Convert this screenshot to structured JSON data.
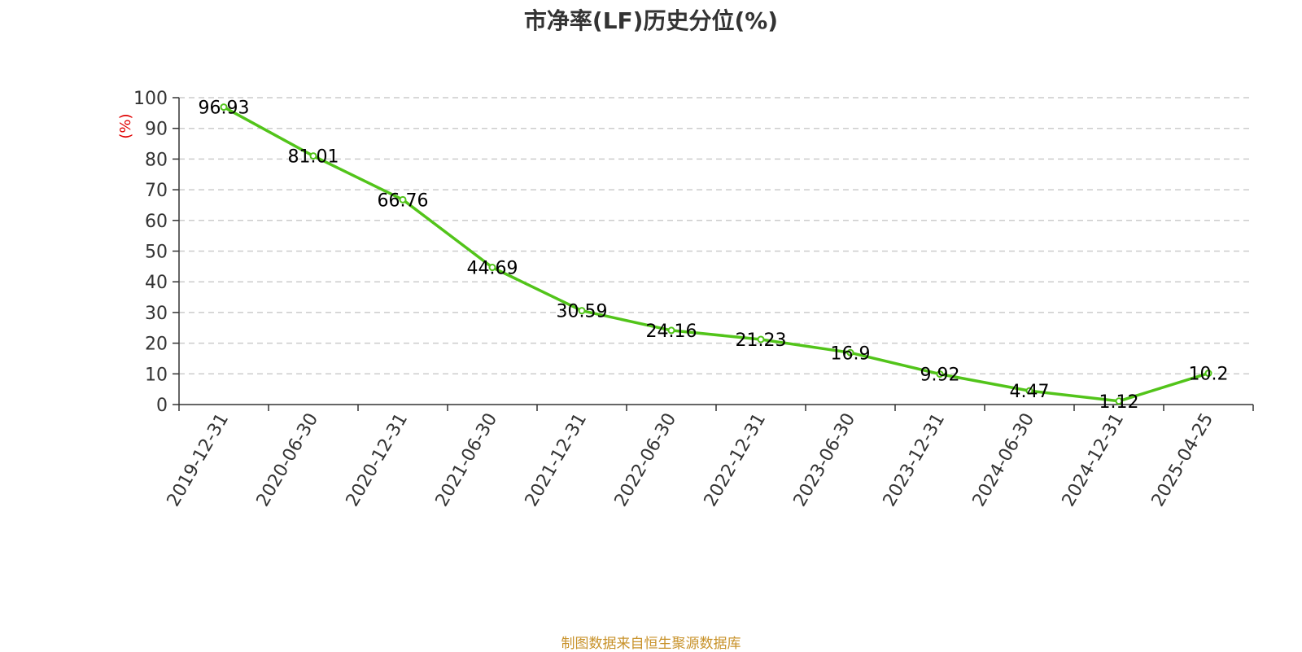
{
  "chart_data": {
    "type": "line",
    "title": "市净率(LF)历史分位(%)",
    "ylabel": "(%)",
    "xlabel": "",
    "categories": [
      "2019-12-31",
      "2020-06-30",
      "2020-12-31",
      "2021-06-30",
      "2021-12-31",
      "2022-06-30",
      "2022-12-31",
      "2023-06-30",
      "2023-12-31",
      "2024-06-30",
      "2024-12-31",
      "2025-04-25"
    ],
    "series": [
      {
        "values": [
          96.93,
          81.01,
          66.76,
          44.69,
          30.59,
          24.16,
          21.23,
          16.9,
          9.92,
          4.47,
          1.12,
          10.2
        ]
      }
    ],
    "data_labels": [
      "96.93",
      "81.01",
      "66.76",
      "44.69",
      "30.59",
      "24.16",
      "21.23",
      "16.9",
      "9.92",
      "4.47",
      "1.12",
      "10.2"
    ],
    "ylim": [
      0,
      100
    ],
    "yticks": [
      "0",
      "10",
      "20",
      "30",
      "40",
      "50",
      "60",
      "70",
      "80",
      "90",
      "100"
    ],
    "grid": true,
    "colors": {
      "line": "#52c41a",
      "ylabel": "#e00000",
      "grid": "#cccccc",
      "source": "#c8922a"
    }
  },
  "footer": {
    "source": "制图数据来自恒生聚源数据库"
  }
}
